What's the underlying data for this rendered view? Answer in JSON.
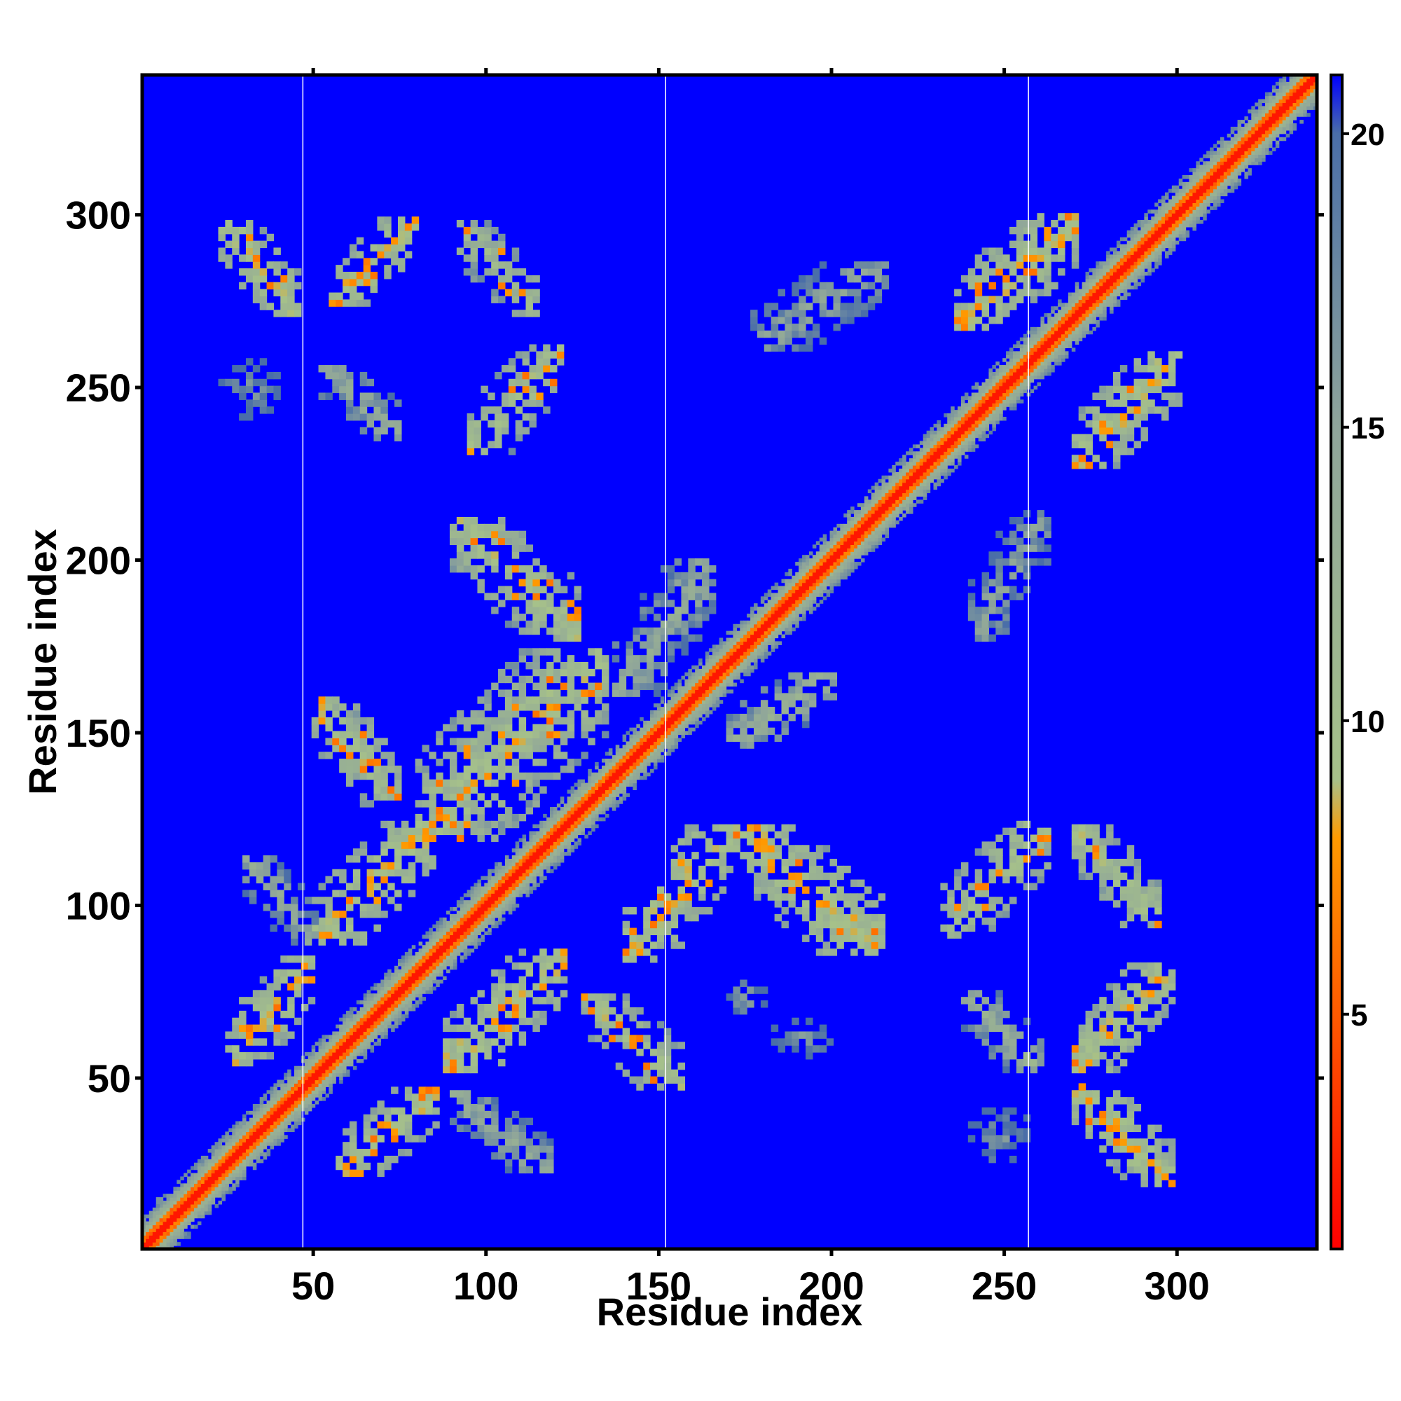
{
  "chart_data": {
    "type": "heatmap",
    "title": "",
    "xlabel": "Residue index",
    "ylabel": "Residue index",
    "x_range": [
      1,
      340
    ],
    "y_range": [
      1,
      340
    ],
    "x_ticks": [
      50,
      100,
      150,
      200,
      250,
      300
    ],
    "y_ticks": [
      50,
      100,
      150,
      200,
      250,
      300
    ],
    "x_tick_labels": [
      "50",
      "100",
      "150",
      "200",
      "250",
      "300"
    ],
    "y_tick_labels": [
      "50",
      "100",
      "150",
      "200",
      "250",
      "300"
    ],
    "vertical_separators_x": [
      47,
      152,
      257
    ],
    "background_value": 21,
    "colorbar": {
      "range": [
        1,
        21
      ],
      "ticks": [
        5,
        10,
        15,
        20
      ],
      "tick_labels": [
        "5",
        "10",
        "15",
        "20"
      ],
      "color_stops": [
        {
          "value": 1,
          "color": "#ff0000"
        },
        {
          "value": 5,
          "color": "#ff5a00"
        },
        {
          "value": 8,
          "color": "#ff9a00"
        },
        {
          "value": 9,
          "color": "#a6c18a"
        },
        {
          "value": 15,
          "color": "#8fa59a"
        },
        {
          "value": 20,
          "color": "#4a6ea8"
        },
        {
          "value": 21,
          "color": "#0000ff"
        }
      ]
    },
    "diagonal": {
      "core_value": 2,
      "inner_value": 6,
      "outer_value": 12
    },
    "contact_regions": [
      {
        "x": [
          23,
          45
        ],
        "y": [
          272,
          299
        ],
        "orientation": "anti",
        "value": 9
      },
      {
        "x": [
          55,
          80
        ],
        "y": [
          275,
          300
        ],
        "orientation": "parallel",
        "value": 9
      },
      {
        "x": [
          92,
          115
        ],
        "y": [
          272,
          298
        ],
        "orientation": "anti",
        "value": 11
      },
      {
        "x": [
          95,
          122
        ],
        "y": [
          232,
          262
        ],
        "orientation": "parallel",
        "value": 10
      },
      {
        "x": [
          52,
          75
        ],
        "y": [
          236,
          257
        ],
        "orientation": "anti",
        "value": 14
      },
      {
        "x": [
          23,
          40
        ],
        "y": [
          242,
          258
        ],
        "orientation": "none",
        "value": 16
      },
      {
        "x": [
          90,
          127
        ],
        "y": [
          178,
          213
        ],
        "orientation": "anti",
        "value": 10
      },
      {
        "x": [
          80,
          135
        ],
        "y": [
          120,
          175
        ],
        "orientation": "parallel",
        "value": 10
      },
      {
        "x": [
          137,
          165
        ],
        "y": [
          162,
          200
        ],
        "orientation": "parallel",
        "value": 14
      },
      {
        "x": [
          170,
          200
        ],
        "y": [
          147,
          168
        ],
        "orientation": "parallel",
        "value": 13
      },
      {
        "x": [
          177,
          215
        ],
        "y": [
          262,
          287
        ],
        "orientation": "parallel",
        "value": 15
      },
      {
        "x": [
          236,
          270
        ],
        "y": [
          268,
          300
        ],
        "orientation": "parallel",
        "value": 9
      },
      {
        "x": [
          270,
          300
        ],
        "y": [
          228,
          260
        ],
        "orientation": "parallel",
        "value": 9
      },
      {
        "x": [
          240,
          262
        ],
        "y": [
          178,
          215
        ],
        "orientation": "parallel",
        "value": 15
      },
      {
        "x": [
          50,
          75
        ],
        "y": [
          130,
          160
        ],
        "orientation": "anti",
        "value": 10
      },
      {
        "x": [
          50,
          85
        ],
        "y": [
          90,
          125
        ],
        "orientation": "parallel",
        "value": 9
      },
      {
        "x": [
          30,
          50
        ],
        "y": [
          90,
          115
        ],
        "orientation": "anti",
        "value": 14
      },
      {
        "x": [
          140,
          170
        ],
        "y": [
          85,
          123
        ],
        "orientation": "parallel",
        "value": 9
      },
      {
        "x": [
          172,
          214
        ],
        "y": [
          87,
          124
        ],
        "orientation": "anti",
        "value": 9
      },
      {
        "x": [
          232,
          262
        ],
        "y": [
          92,
          124
        ],
        "orientation": "parallel",
        "value": 10
      },
      {
        "x": [
          270,
          295
        ],
        "y": [
          95,
          123
        ],
        "orientation": "anti",
        "value": 10
      },
      {
        "x": [
          25,
          50
        ],
        "y": [
          55,
          85
        ],
        "orientation": "parallel",
        "value": 9
      },
      {
        "x": [
          88,
          123
        ],
        "y": [
          53,
          88
        ],
        "orientation": "parallel",
        "value": 9
      },
      {
        "x": [
          128,
          156
        ],
        "y": [
          48,
          75
        ],
        "orientation": "anti",
        "value": 10
      },
      {
        "x": [
          57,
          86
        ],
        "y": [
          23,
          48
        ],
        "orientation": "parallel",
        "value": 9
      },
      {
        "x": [
          90,
          118
        ],
        "y": [
          24,
          46
        ],
        "orientation": "anti",
        "value": 14
      },
      {
        "x": [
          170,
          180
        ],
        "y": [
          68,
          80
        ],
        "orientation": "none",
        "value": 15
      },
      {
        "x": [
          183,
          200
        ],
        "y": [
          57,
          68
        ],
        "orientation": "none",
        "value": 16
      },
      {
        "x": [
          238,
          260
        ],
        "y": [
          53,
          75
        ],
        "orientation": "anti",
        "value": 13
      },
      {
        "x": [
          270,
          298
        ],
        "y": [
          53,
          84
        ],
        "orientation": "parallel",
        "value": 9
      },
      {
        "x": [
          270,
          298
        ],
        "y": [
          20,
          48
        ],
        "orientation": "anti",
        "value": 9
      },
      {
        "x": [
          240,
          257
        ],
        "y": [
          25,
          42
        ],
        "orientation": "none",
        "value": 16
      },
      {
        "x": [
          1,
          13
        ],
        "y": [
          1,
          15
        ],
        "orientation": "none",
        "value": 12
      }
    ]
  }
}
